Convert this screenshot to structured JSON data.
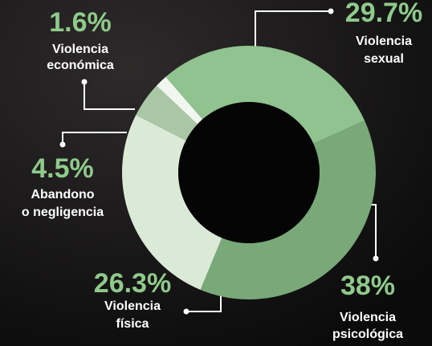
{
  "chart_data": {
    "type": "donut",
    "categories": [
      [
        "Violencia",
        "sexual"
      ],
      [
        "Violencia",
        "psicológica"
      ],
      [
        "Violencia",
        "física"
      ],
      [
        "Abandono",
        "o negligencia"
      ],
      [
        "Violencia",
        "económica"
      ]
    ],
    "values": [
      29.7,
      38,
      26.3,
      4.5,
      1.6
    ],
    "value_labels": [
      "29.7%",
      "38%",
      "26.3%",
      "4.5%",
      "1.6%"
    ],
    "colors": [
      "#90c38f",
      "#79a978",
      "#dbeAd7",
      "#a9c7a5",
      "#f1f7ef"
    ]
  }
}
